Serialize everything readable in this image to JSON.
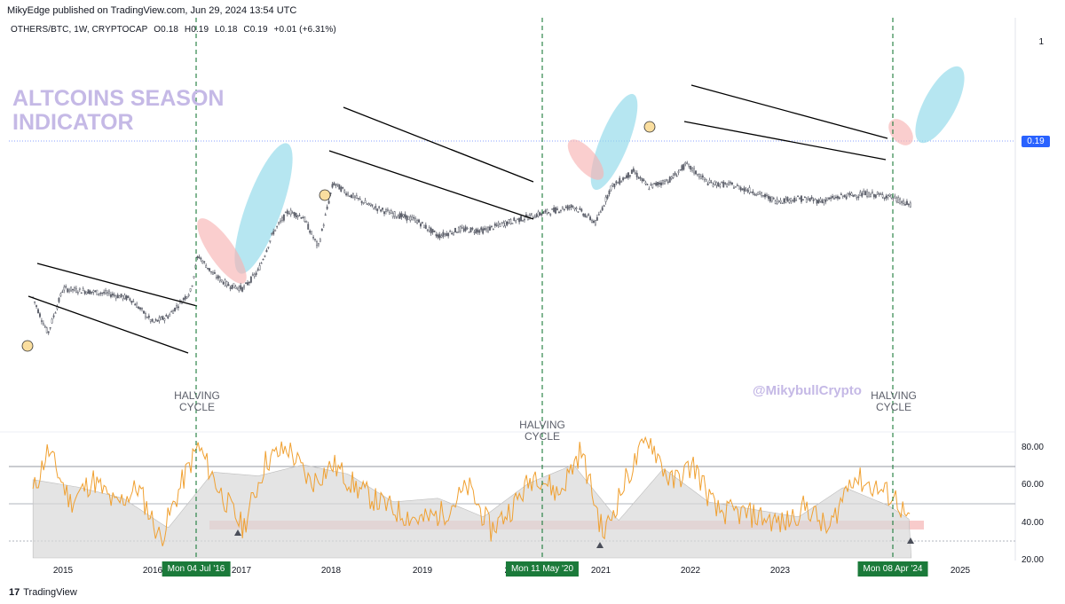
{
  "header": {
    "publisher": "MikyEdge published on TradingView.com, Jun 29, 2024 13:54 UTC"
  },
  "symbol": {
    "name": "OTHERS/BTC, 1W, CRYPTOCAP",
    "open": "O0.18",
    "high": "H0.19",
    "low": "L0.18",
    "close": "C0.19",
    "change": "+0.01 (+6.31%)"
  },
  "title_line1": "ALTCOINS SEASON",
  "title_line2": "INDICATOR",
  "watermark_handle": "@MikybullCrypto",
  "halvings": [
    {
      "line1": "HALVING",
      "line2": "CYCLE"
    },
    {
      "line1": "HALVING",
      "line2": "CYCLE"
    },
    {
      "line1": "HALVING",
      "line2": "CYCLE"
    }
  ],
  "price_axis": {
    "top_label": "1",
    "current_price": "0.19"
  },
  "oscillator_axis": [
    "80.00",
    "60.00",
    "40.00",
    "20.00"
  ],
  "x_axis": {
    "years": [
      "2015",
      "2016",
      "2017",
      "2018",
      "2019",
      "20",
      "2021",
      "2022",
      "2023",
      "2025"
    ],
    "halving_dates": [
      "Mon 04 Jul '16",
      "Mon 11 May '20",
      "Mon 08 Apr '24"
    ]
  },
  "branding": {
    "logo": "17",
    "name": "TradingView"
  },
  "colors": {
    "candle": "#5d606b",
    "halving_line": "#1b7a3a",
    "cool_zone": "#8fd8ea",
    "hot_zone": "#f7b4b4",
    "oscillator_line": "#f0a030",
    "oscillator_fill": "#d9d9d9",
    "support_band": "#f2a0a0",
    "price_tag": "#2962ff"
  },
  "chart_data": [
    {
      "type": "line",
      "title": "ALTCOINS SEASON INDICATOR",
      "series": [
        {
          "name": "OTHERS/BTC, 1W, CRYPTOCAP",
          "x": [
            "2014-09",
            "2014-10",
            "2014-11",
            "2015-01",
            "2015-04",
            "2015-07",
            "2015-10",
            "2016-01",
            "2016-03",
            "2016-06",
            "2016-07",
            "2016-09",
            "2016-11",
            "2017-01",
            "2017-03",
            "2017-05",
            "2017-07",
            "2017-09",
            "2017-11",
            "2018-01",
            "2018-03",
            "2018-06",
            "2018-09",
            "2018-12",
            "2019-03",
            "2019-06",
            "2019-09",
            "2019-12",
            "2020-03",
            "2020-06",
            "2020-09",
            "2020-12",
            "2021-02",
            "2021-05",
            "2021-07",
            "2021-10",
            "2021-12",
            "2022-03",
            "2022-06",
            "2022-09",
            "2022-12",
            "2023-03",
            "2023-06",
            "2023-09",
            "2023-12",
            "2024-03",
            "2024-06"
          ],
          "values": [
            0.075,
            0.062,
            0.052,
            0.082,
            0.08,
            0.078,
            0.074,
            0.058,
            0.062,
            0.08,
            0.115,
            0.095,
            0.085,
            0.082,
            0.098,
            0.145,
            0.18,
            0.17,
            0.125,
            0.24,
            0.215,
            0.19,
            0.175,
            0.165,
            0.14,
            0.15,
            0.148,
            0.16,
            0.17,
            0.18,
            0.19,
            0.16,
            0.23,
            0.27,
            0.23,
            0.25,
            0.29,
            0.24,
            0.235,
            0.22,
            0.2,
            0.205,
            0.2,
            0.21,
            0.215,
            0.21,
            0.19
          ]
        }
      ],
      "annotations": [
        "HALVING CYCLE",
        "HALVING CYCLE",
        "HALVING CYCLE",
        "@MikybullCrypto"
      ],
      "ylim": [
        0.04,
        1
      ],
      "scale": "log",
      "grid": false
    },
    {
      "type": "line",
      "series": [
        {
          "x": [
            "2014-09",
            "2014-11",
            "2015-02",
            "2015-05",
            "2015-08",
            "2015-11",
            "2016-02",
            "2016-05",
            "2016-07",
            "2016-10",
            "2017-01",
            "2017-04",
            "2017-07",
            "2017-10",
            "2018-01",
            "2018-04",
            "2018-07",
            "2018-10",
            "2019-01",
            "2019-04",
            "2019-07",
            "2019-10",
            "2020-01",
            "2020-04",
            "2020-07",
            "2020-10",
            "2021-01",
            "2021-04",
            "2021-07",
            "2021-10",
            "2022-01",
            "2022-04",
            "2022-07",
            "2022-10",
            "2023-01",
            "2023-04",
            "2023-07",
            "2023-10",
            "2024-01",
            "2024-04",
            "2024-06"
          ],
          "values": [
            55,
            78,
            50,
            62,
            48,
            58,
            30,
            62,
            80,
            55,
            36,
            72,
            79,
            60,
            70,
            58,
            50,
            44,
            40,
            45,
            58,
            35,
            48,
            66,
            54,
            78,
            32,
            62,
            85,
            60,
            70,
            45,
            44,
            42,
            38,
            48,
            34,
            64,
            58,
            52,
            36
          ]
        },
        {
          "x": [
            "2014-09",
            "2015-03",
            "2015-09",
            "2016-03",
            "2016-09",
            "2017-03",
            "2017-09",
            "2018-03",
            "2018-09",
            "2019-03",
            "2019-09",
            "2020-03",
            "2020-09",
            "2021-03",
            "2021-09",
            "2022-03",
            "2022-09",
            "2023-03",
            "2023-09",
            "2024-03",
            "2024-06"
          ],
          "values": [
            62,
            58,
            52,
            36,
            66,
            64,
            70,
            65,
            50,
            52,
            42,
            60,
            70,
            40,
            68,
            50,
            46,
            42,
            58,
            48,
            40
          ]
        }
      ],
      "ylim": [
        20,
        85
      ],
      "grid": false
    }
  ]
}
